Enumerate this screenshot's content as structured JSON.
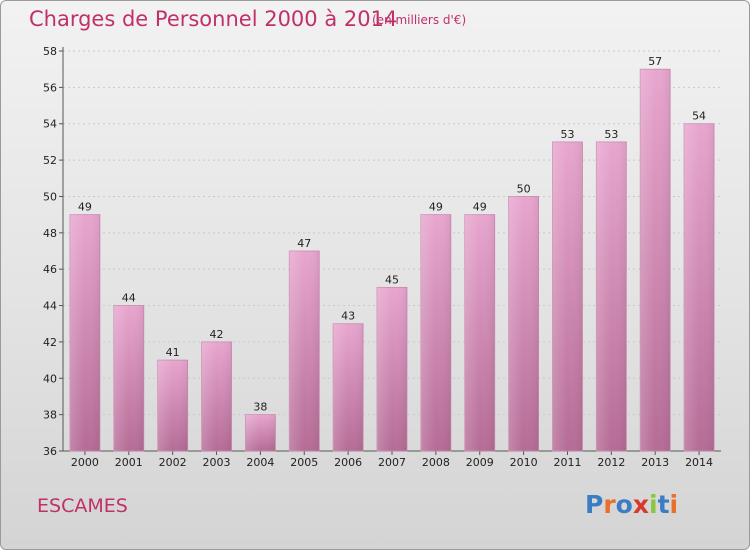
{
  "header": {
    "title": "Charges de Personnel 2000 à 2014",
    "subtitle": "(en milliers d'€)"
  },
  "footer": {
    "place": "ESCAMES",
    "logo": "Proxiti"
  },
  "colors": {
    "title": "#c0306a",
    "bar_top": "#e8a6cf",
    "bar_bottom": "#b56c96",
    "background": "#e6e6e6",
    "logo_letters": [
      "#3b7dc4",
      "#e8702a",
      "#3b7dc4",
      "#d63a2a",
      "#8cc63f",
      "#3b7dc4",
      "#e8702a"
    ]
  },
  "chart_data": {
    "type": "bar",
    "title": "Charges de Personnel 2000 à 2014",
    "subtitle": "(en milliers d'€)",
    "categories": [
      "2000",
      "2001",
      "2002",
      "2003",
      "2004",
      "2005",
      "2006",
      "2007",
      "2008",
      "2009",
      "2010",
      "2011",
      "2012",
      "2013",
      "2014"
    ],
    "values": [
      49,
      44,
      41,
      42,
      38,
      47,
      43,
      45,
      49,
      49,
      50,
      53,
      53,
      57,
      54
    ],
    "data_labels": [
      "49",
      "44",
      "41",
      "42",
      "38",
      "47",
      "43",
      "45",
      "49",
      "49",
      "50",
      "53",
      "53",
      "57",
      "54"
    ],
    "yticks": [
      36,
      38,
      40,
      42,
      44,
      46,
      48,
      50,
      52,
      54,
      56,
      58
    ],
    "ylim": [
      36,
      58
    ],
    "xlabel": "",
    "ylabel": "",
    "grid": true,
    "legend": "none"
  }
}
